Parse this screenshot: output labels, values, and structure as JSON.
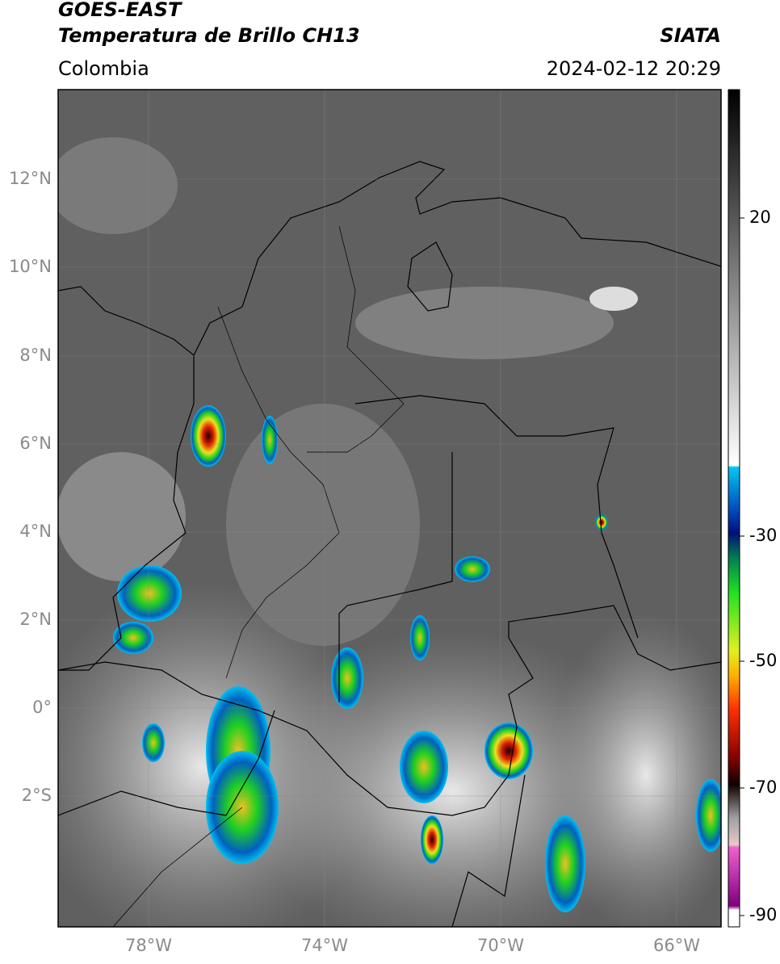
{
  "header": {
    "satellite": "GOES-EAST",
    "product": "Temperatura de Brillo CH13",
    "region": "Colombia",
    "source": "SIATA",
    "datetime": "2024-02-12 20:29"
  },
  "map": {
    "lat_labels": [
      "12°N",
      "10°N",
      "8°N",
      "6°N",
      "4°N",
      "2°N",
      "0°",
      "2°S"
    ],
    "lon_labels": [
      "78°W",
      "74°W",
      "70°W",
      "66°W"
    ]
  },
  "colorbar": {
    "tick_labels": [
      "20",
      "-30",
      "-50",
      "-70",
      "-90"
    ]
  }
}
